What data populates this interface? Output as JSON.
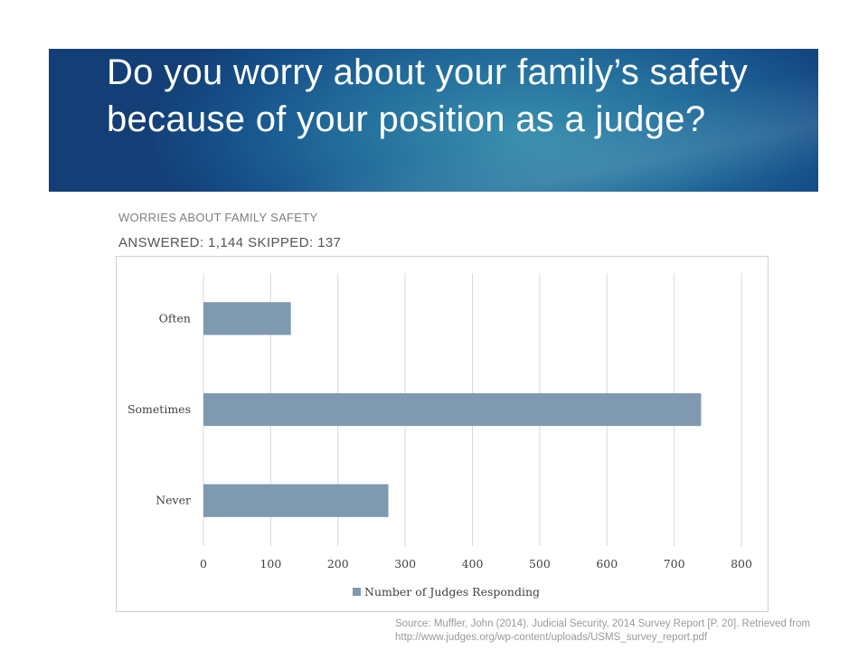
{
  "slide": {
    "title": "Do you worry about your family’s safety because of your position as a judge?",
    "subtitle": "WORRIES ABOUT FAMILY SAFETY",
    "answered": "ANSWERED: 1,144  SKIPPED:  137",
    "source_line1": "Source: Muffler, John (2014). Judicial Security, 2014 Survey Report [P. 20]. Retrieved from",
    "source_line2": "http://www.judges.org/wp-content/uploads/USMS_survey_report.pdf"
  },
  "colors": {
    "bar": "#7f99b0",
    "grid": "#d9d9d9",
    "text": "#404040"
  },
  "chart_data": {
    "type": "bar",
    "orientation": "horizontal",
    "categories": [
      "Often",
      "Sometimes",
      "Never"
    ],
    "series": [
      {
        "name": "Number of Judges Responding",
        "values": [
          130,
          740,
          275
        ]
      }
    ],
    "xlim": [
      0,
      800
    ],
    "xticks": [
      0,
      100,
      200,
      300,
      400,
      500,
      600,
      700,
      800
    ],
    "grid": true,
    "legend": "bottom"
  }
}
